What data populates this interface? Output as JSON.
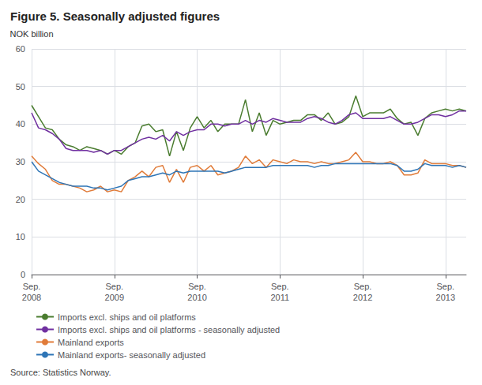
{
  "chart_data": {
    "type": "line",
    "title": "Figure 5. Seasonally adjusted figures",
    "ylabel": "NOK billion",
    "source": "Source: Statistics Norway.",
    "categories": [
      "Sep.\n2008",
      null,
      null,
      null,
      null,
      null,
      null,
      null,
      null,
      null,
      null,
      null,
      "Sep.\n2009",
      null,
      null,
      null,
      null,
      null,
      null,
      null,
      null,
      null,
      null,
      null,
      "Sep.\n2010",
      null,
      null,
      null,
      null,
      null,
      null,
      null,
      null,
      null,
      null,
      null,
      "Sep.\n2011",
      null,
      null,
      null,
      null,
      null,
      null,
      null,
      null,
      null,
      null,
      null,
      "Sep.\n2012",
      null,
      null,
      null,
      null,
      null,
      null,
      null,
      null,
      null,
      null,
      null,
      "Sep.\n2013",
      null,
      null,
      null
    ],
    "ylim": [
      0,
      60
    ],
    "yticks": [
      0,
      10,
      20,
      30,
      40,
      50,
      60
    ],
    "grid": true,
    "legend": "bottom",
    "series": [
      {
        "name": "Imports excl. ships and oil platforms",
        "color": "#4a7c2f",
        "values": [
          45.0,
          42.0,
          39.0,
          38.5,
          36.0,
          34.5,
          34.0,
          33.0,
          34.0,
          33.5,
          33.0,
          32.0,
          33.0,
          32.0,
          34.0,
          35.0,
          39.5,
          40.0,
          38.0,
          38.5,
          31.5,
          38.0,
          33.0,
          39.0,
          42.0,
          39.0,
          41.0,
          38.0,
          40.0,
          40.0,
          40.0,
          46.5,
          38.0,
          43.0,
          37.0,
          41.0,
          40.0,
          40.5,
          41.0,
          41.0,
          42.5,
          42.5,
          41.0,
          43.0,
          40.0,
          40.5,
          42.0,
          47.5,
          42.0,
          43.0,
          43.0,
          43.0,
          44.0,
          41.5,
          40.0,
          40.5,
          37.0,
          41.5,
          43.0,
          43.5,
          44.0,
          43.5,
          44.0,
          43.5
        ]
      },
      {
        "name": "Imports excl. ships and oil platforms - seasonally adjusted",
        "color": "#7030a0",
        "values": [
          43.0,
          39.0,
          38.5,
          37.5,
          36.0,
          33.5,
          33.0,
          33.0,
          33.0,
          32.5,
          33.0,
          32.0,
          33.0,
          33.0,
          34.0,
          35.0,
          36.0,
          36.5,
          36.0,
          37.0,
          35.5,
          38.0,
          37.0,
          38.0,
          38.5,
          38.5,
          40.0,
          40.0,
          39.5,
          40.0,
          40.0,
          41.0,
          40.0,
          41.0,
          40.5,
          41.5,
          41.0,
          40.5,
          40.5,
          40.5,
          41.5,
          42.0,
          41.5,
          40.5,
          40.0,
          41.0,
          42.5,
          43.0,
          41.5,
          41.5,
          41.5,
          41.5,
          42.0,
          41.0,
          40.0,
          40.0,
          40.5,
          41.5,
          42.5,
          42.5,
          42.0,
          42.5,
          43.5,
          43.5
        ]
      },
      {
        "name": "Mainland exports",
        "color": "#e07b39",
        "values": [
          31.5,
          29.5,
          28.0,
          25.0,
          24.0,
          24.0,
          23.5,
          23.0,
          22.0,
          22.5,
          23.5,
          22.0,
          22.5,
          22.0,
          25.0,
          26.0,
          27.5,
          26.0,
          28.5,
          29.0,
          24.5,
          28.0,
          24.5,
          28.5,
          29.0,
          27.5,
          29.0,
          26.5,
          27.0,
          27.5,
          28.5,
          31.5,
          29.5,
          30.5,
          28.5,
          30.5,
          30.0,
          29.5,
          30.5,
          30.0,
          30.0,
          29.5,
          30.0,
          29.5,
          29.5,
          30.0,
          30.5,
          32.5,
          30.0,
          30.0,
          29.5,
          29.5,
          30.0,
          29.0,
          26.5,
          26.5,
          27.0,
          30.5,
          29.5,
          29.5,
          29.5,
          29.0,
          29.0,
          28.5
        ]
      },
      {
        "name": "Mainland exports- seasonally adjusted",
        "color": "#2e75b6",
        "values": [
          30.0,
          27.5,
          26.5,
          25.5,
          24.5,
          24.0,
          23.5,
          23.5,
          23.5,
          23.0,
          23.0,
          22.5,
          23.0,
          23.5,
          25.0,
          25.5,
          26.0,
          26.0,
          26.5,
          27.0,
          26.5,
          27.5,
          27.0,
          27.5,
          27.5,
          27.5,
          27.5,
          27.5,
          27.0,
          27.5,
          28.0,
          28.5,
          28.5,
          28.5,
          28.5,
          29.0,
          29.0,
          29.0,
          29.0,
          29.0,
          29.0,
          28.5,
          29.0,
          29.0,
          29.5,
          29.5,
          29.5,
          29.5,
          29.5,
          29.5,
          29.5,
          29.5,
          29.5,
          29.0,
          27.5,
          27.5,
          28.0,
          29.5,
          29.0,
          29.0,
          29.0,
          28.5,
          29.0,
          28.5
        ]
      }
    ]
  }
}
